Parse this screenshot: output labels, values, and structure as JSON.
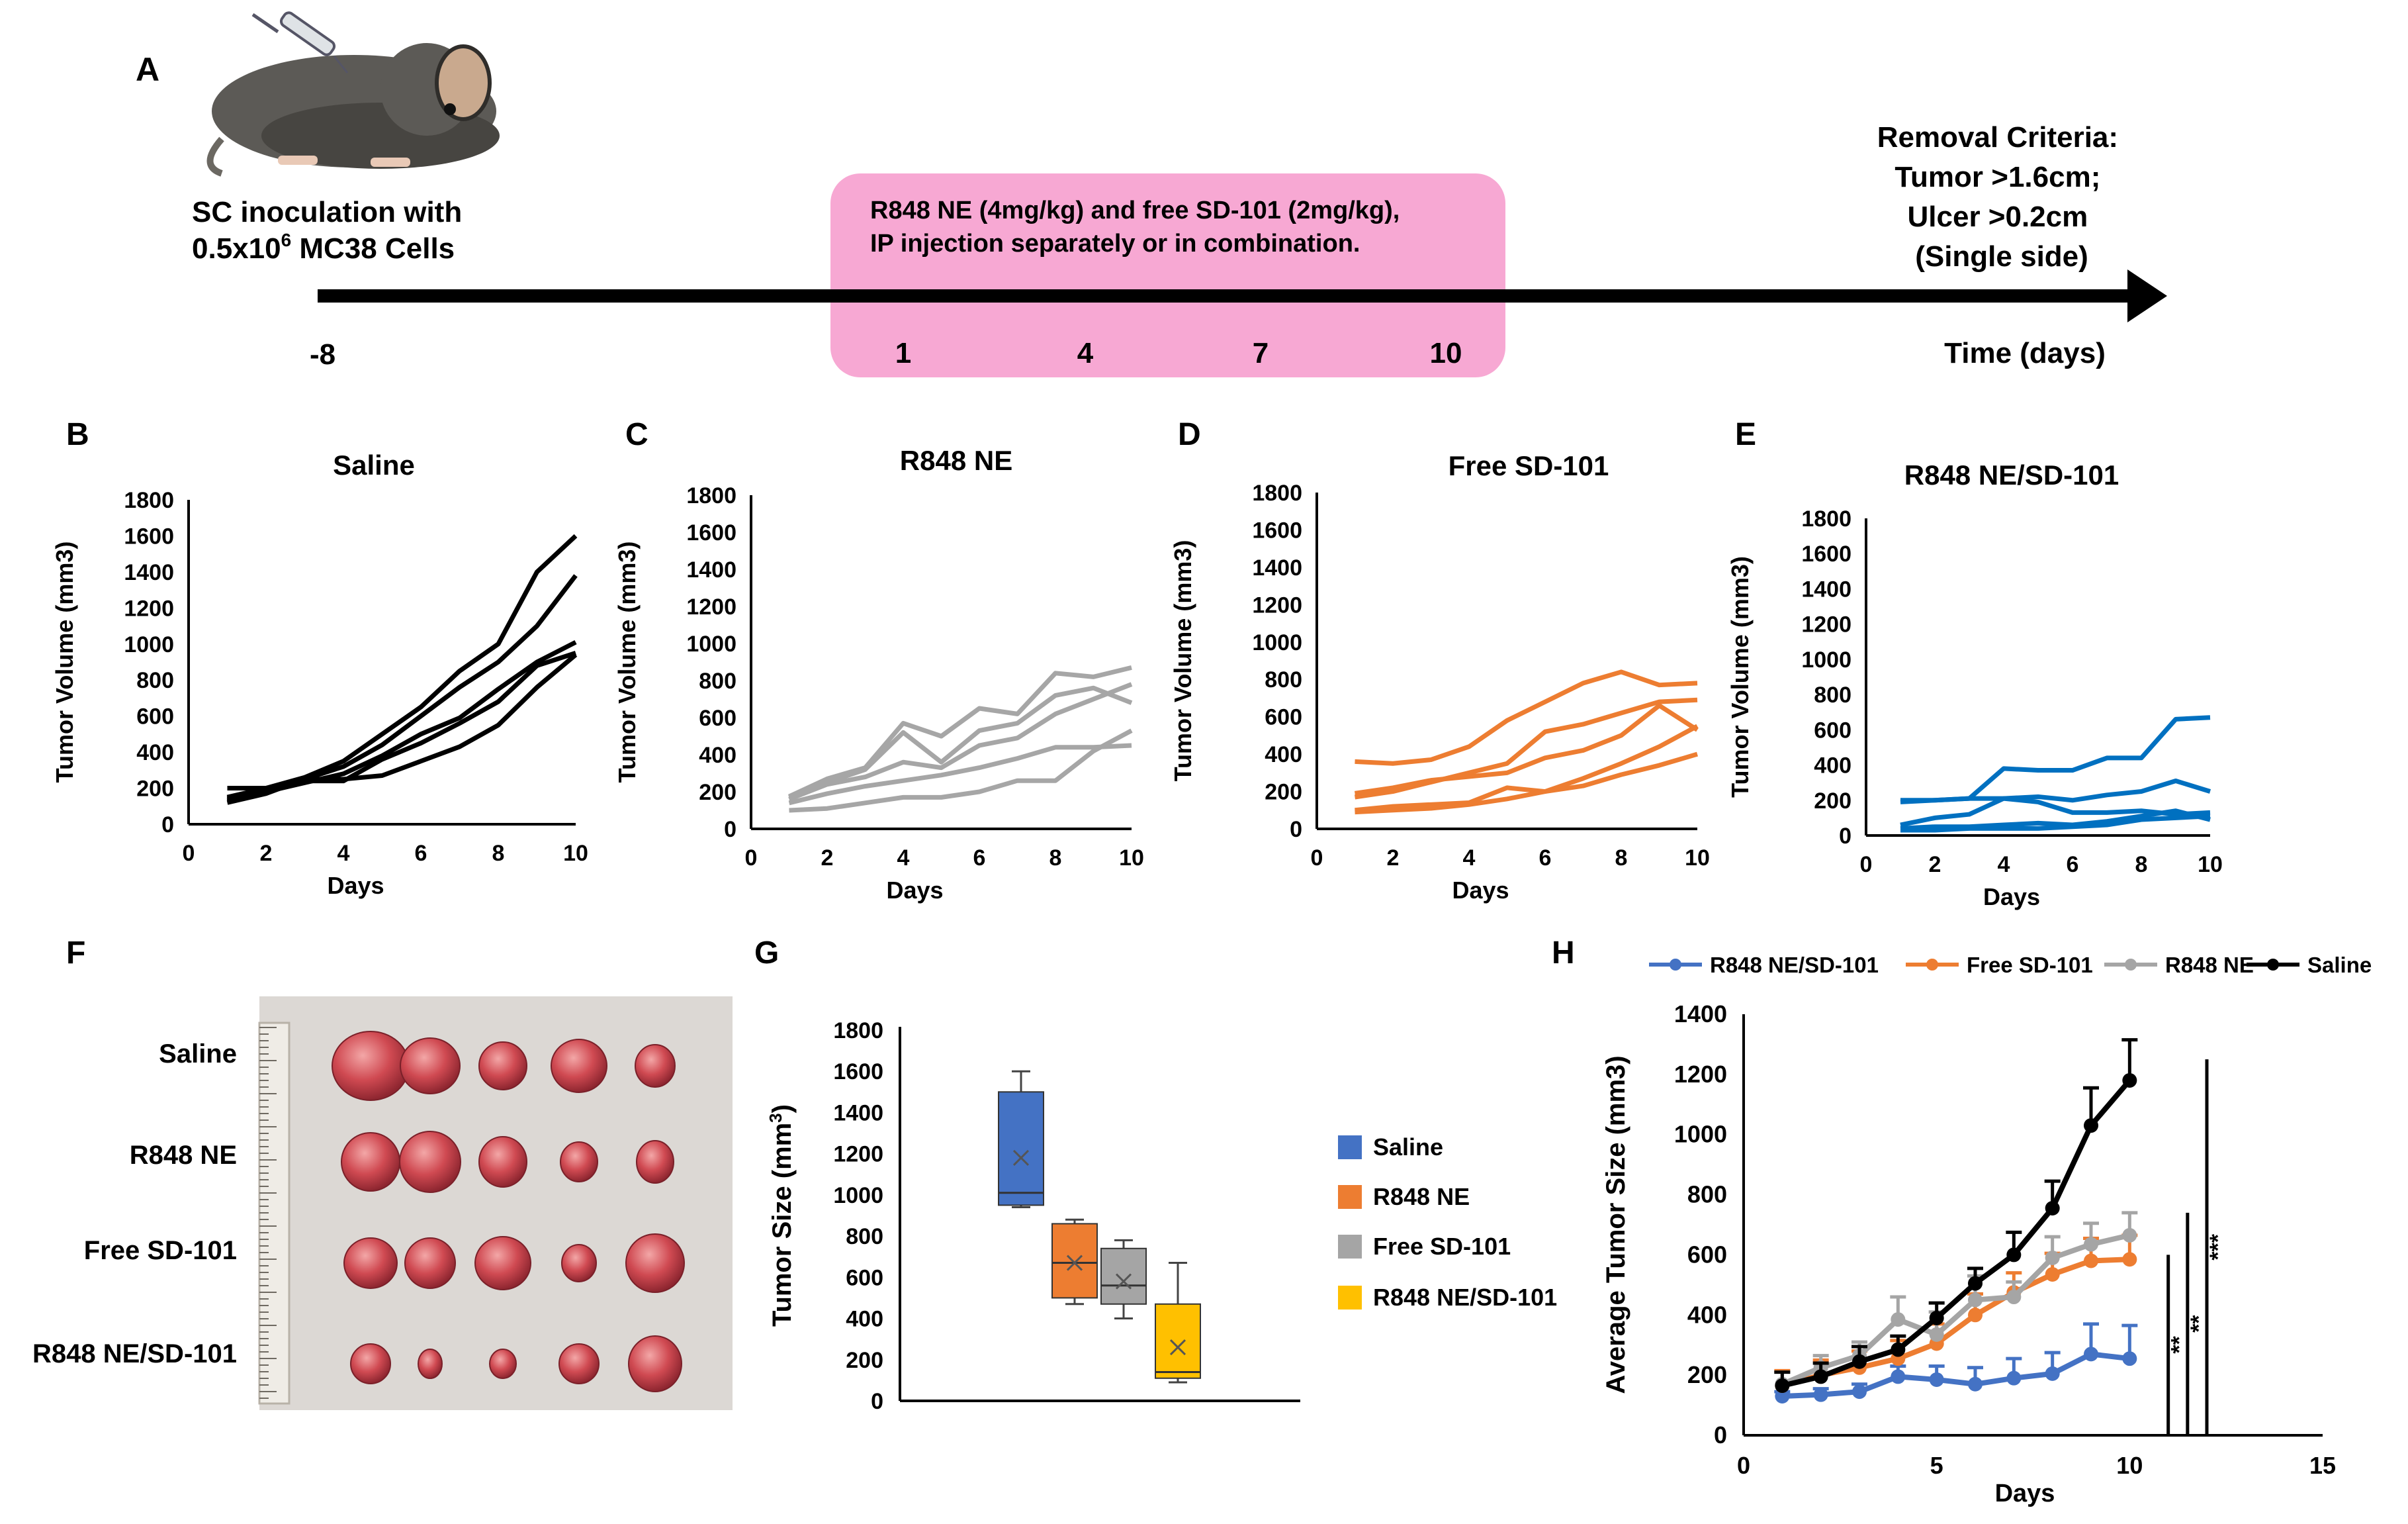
{
  "panel_labels": {
    "a": "A",
    "b": "B",
    "c": "C",
    "d": "D",
    "e": "E",
    "f": "F",
    "g": "G",
    "h": "H"
  },
  "timeline": {
    "inoculation_line1": "SC inoculation with",
    "inoculation_line2_a": "0.5x10",
    "inoculation_line2_sup": "6",
    "inoculation_line2_b": " MC38 Cells",
    "treatment_line1": "R848 NE (4mg/kg) and free SD-101 (2mg/kg),",
    "treatment_line2": "IP injection separately or in combination.",
    "start_day": "-8",
    "dose_days": [
      "1",
      "4",
      "7",
      "10"
    ],
    "removal_line1": "Removal Criteria:",
    "removal_line2": "Tumor >1.6cm;",
    "removal_line3": "Ulcer >0.2cm",
    "removal_line4": "(Single side)",
    "time_label": "Time (days)",
    "box_color": "#f7a8d3",
    "mouse_icon": "mouse-with-syringe-icon"
  },
  "photo": {
    "row_labels": [
      "Saline",
      "R848 NE",
      "Free SD-101",
      "R848 NE/SD-101"
    ],
    "background_color": "#dcd8d4",
    "tumor_color": "#c8404a",
    "ruler_icon": "ruler-icon"
  },
  "chart_data": [
    {
      "id": "B",
      "type": "line",
      "title": "Saline",
      "xlabel": "Days",
      "ylabel": "Tumor Volume (mm3)",
      "xlim": [
        0,
        10
      ],
      "ylim": [
        0,
        1800
      ],
      "xticks": [
        "0",
        "2",
        "4",
        "6",
        "8",
        "10"
      ],
      "yticks": [
        "0",
        "200",
        "400",
        "600",
        "800",
        "1000",
        "1200",
        "1400",
        "1600",
        "1800"
      ],
      "color": "#000000",
      "x": [
        1,
        2,
        3,
        4,
        5,
        6,
        7,
        8,
        9,
        10
      ],
      "series": [
        {
          "values": [
            150,
            200,
            260,
            350,
            500,
            650,
            850,
            1000,
            1400,
            1600
          ]
        },
        {
          "values": [
            140,
            190,
            250,
            320,
            440,
            600,
            760,
            900,
            1100,
            1380
          ]
        },
        {
          "values": [
            130,
            180,
            230,
            280,
            380,
            500,
            590,
            750,
            900,
            1010
          ]
        },
        {
          "values": [
            200,
            200,
            240,
            240,
            360,
            450,
            560,
            680,
            880,
            950
          ]
        },
        {
          "values": [
            120,
            170,
            250,
            250,
            270,
            350,
            430,
            550,
            760,
            940
          ]
        }
      ]
    },
    {
      "id": "C",
      "type": "line",
      "title": "R848 NE",
      "xlabel": "Days",
      "ylabel": "Tumor Volume (mm3)",
      "xlim": [
        0,
        10
      ],
      "ylim": [
        0,
        1800
      ],
      "xticks": [
        "0",
        "2",
        "4",
        "6",
        "8",
        "10"
      ],
      "yticks": [
        "0",
        "200",
        "400",
        "600",
        "800",
        "1000",
        "1200",
        "1400",
        "1600",
        "1800"
      ],
      "color": "#a6a6a6",
      "x": [
        1,
        2,
        3,
        4,
        5,
        6,
        7,
        8,
        9,
        10
      ],
      "series": [
        {
          "values": [
            175,
            270,
            330,
            570,
            500,
            650,
            620,
            840,
            820,
            870
          ]
        },
        {
          "values": [
            170,
            250,
            320,
            520,
            360,
            530,
            570,
            720,
            760,
            680
          ]
        },
        {
          "values": [
            160,
            240,
            280,
            360,
            330,
            450,
            490,
            620,
            700,
            780
          ]
        },
        {
          "values": [
            140,
            190,
            230,
            260,
            290,
            330,
            380,
            440,
            440,
            450
          ]
        },
        {
          "values": [
            100,
            110,
            140,
            170,
            170,
            200,
            260,
            260,
            420,
            530
          ]
        }
      ]
    },
    {
      "id": "D",
      "type": "line",
      "title": "Free SD-101",
      "xlabel": "Days",
      "ylabel": "Tumor Volume (mm3)",
      "xlim": [
        0,
        10
      ],
      "ylim": [
        0,
        1800
      ],
      "xticks": [
        "0",
        "2",
        "4",
        "6",
        "8",
        "10"
      ],
      "yticks": [
        "0",
        "200",
        "400",
        "600",
        "800",
        "1000",
        "1200",
        "1400",
        "1600",
        "1800"
      ],
      "color": "#ed7d31",
      "x": [
        1,
        2,
        3,
        4,
        5,
        6,
        7,
        8,
        9,
        10
      ],
      "series": [
        {
          "values": [
            360,
            350,
            370,
            440,
            580,
            680,
            780,
            840,
            770,
            780
          ]
        },
        {
          "values": [
            170,
            200,
            250,
            300,
            350,
            520,
            560,
            620,
            680,
            690
          ]
        },
        {
          "values": [
            190,
            220,
            260,
            280,
            300,
            380,
            420,
            500,
            660,
            530
          ]
        },
        {
          "values": [
            100,
            120,
            130,
            140,
            220,
            200,
            270,
            350,
            440,
            550
          ]
        },
        {
          "values": [
            90,
            100,
            110,
            130,
            160,
            200,
            230,
            290,
            340,
            400
          ]
        }
      ]
    },
    {
      "id": "E",
      "type": "line",
      "title": "R848 NE/SD-101",
      "xlabel": "Days",
      "ylabel": "Tumor Volume (mm3)",
      "xlim": [
        0,
        10
      ],
      "ylim": [
        0,
        1800
      ],
      "xticks": [
        "0",
        "2",
        "4",
        "6",
        "8",
        "10"
      ],
      "yticks": [
        "0",
        "200",
        "400",
        "600",
        "800",
        "1000",
        "1200",
        "1400",
        "1600",
        "1800"
      ],
      "color": "#0070c0",
      "x": [
        1,
        2,
        3,
        4,
        5,
        6,
        7,
        8,
        9,
        10
      ],
      "series": [
        {
          "values": [
            190,
            200,
            210,
            380,
            370,
            370,
            440,
            440,
            660,
            670
          ]
        },
        {
          "values": [
            200,
            200,
            210,
            210,
            220,
            200,
            230,
            250,
            310,
            250
          ]
        },
        {
          "values": [
            60,
            100,
            120,
            210,
            190,
            130,
            130,
            140,
            120,
            130
          ]
        },
        {
          "values": [
            40,
            50,
            50,
            60,
            70,
            60,
            80,
            110,
            140,
            90
          ]
        },
        {
          "values": [
            30,
            30,
            40,
            40,
            40,
            50,
            60,
            90,
            100,
            110
          ]
        }
      ]
    },
    {
      "id": "G",
      "type": "box",
      "ylabel": "Tumor Size (mm3)",
      "ylim": [
        0,
        1800
      ],
      "yticks": [
        "0",
        "200",
        "400",
        "600",
        "800",
        "1000",
        "1200",
        "1400",
        "1600",
        "1800"
      ],
      "legend_position": "right",
      "series": [
        {
          "name": "Saline",
          "color": "#4472c4",
          "min": 940,
          "q1": 950,
          "median": 1010,
          "q3": 1500,
          "max": 1600,
          "mean": 1180
        },
        {
          "name": "R848 NE",
          "color": "#ed7d31",
          "min": 470,
          "q1": 500,
          "median": 670,
          "q3": 860,
          "max": 880,
          "mean": 670
        },
        {
          "name": "Free SD-101",
          "color": "#a5a5a5",
          "min": 400,
          "q1": 470,
          "median": 560,
          "q3": 740,
          "max": 780,
          "mean": 580
        },
        {
          "name": "R848 NE/SD-101",
          "color": "#ffc000",
          "min": 90,
          "q1": 110,
          "median": 140,
          "q3": 470,
          "max": 670,
          "mean": 260
        }
      ]
    },
    {
      "id": "H",
      "type": "line",
      "xlabel": "Days",
      "ylabel": "Average Tumor Size (mm3)",
      "xlim": [
        0,
        15
      ],
      "ylim": [
        0,
        1400
      ],
      "xticks": [
        "0",
        "5",
        "10",
        "15"
      ],
      "yticks": [
        "0",
        "200",
        "400",
        "600",
        "800",
        "1000",
        "1200",
        "1400"
      ],
      "legend_position": "top",
      "x": [
        1,
        2,
        3,
        4,
        5,
        6,
        7,
        8,
        9,
        10
      ],
      "series": [
        {
          "name": "R848 NE/SD-101",
          "color": "#4472c4",
          "values": [
            130,
            135,
            145,
            195,
            185,
            170,
            190,
            205,
            270,
            255
          ],
          "error": [
            15,
            20,
            25,
            35,
            45,
            55,
            65,
            70,
            100,
            110
          ]
        },
        {
          "name": "Free SD-101",
          "color": "#ed7d31",
          "values": [
            165,
            200,
            225,
            255,
            305,
            400,
            475,
            535,
            580,
            585
          ],
          "error": [
            50,
            50,
            55,
            60,
            65,
            70,
            65,
            70,
            75,
            80
          ]
        },
        {
          "name": "R848 NE",
          "color": "#a5a5a5",
          "values": [
            170,
            225,
            265,
            385,
            335,
            450,
            460,
            590,
            635,
            665
          ],
          "error": [
            40,
            40,
            45,
            75,
            75,
            80,
            50,
            70,
            70,
            75
          ]
        },
        {
          "name": "Saline",
          "color": "#000000",
          "values": [
            165,
            195,
            245,
            285,
            390,
            505,
            600,
            755,
            1030,
            1180
          ],
          "error": [
            45,
            45,
            50,
            45,
            50,
            50,
            75,
            90,
            125,
            135
          ]
        }
      ],
      "significance": [
        {
          "label": "**",
          "x": 11,
          "y_from": 1,
          "y_to": 600
        },
        {
          "label": "**",
          "x": 11.5,
          "y_from": 1,
          "y_to": 740
        },
        {
          "label": "***",
          "x": 12,
          "y_from": 1,
          "y_to": 1250
        }
      ]
    }
  ]
}
